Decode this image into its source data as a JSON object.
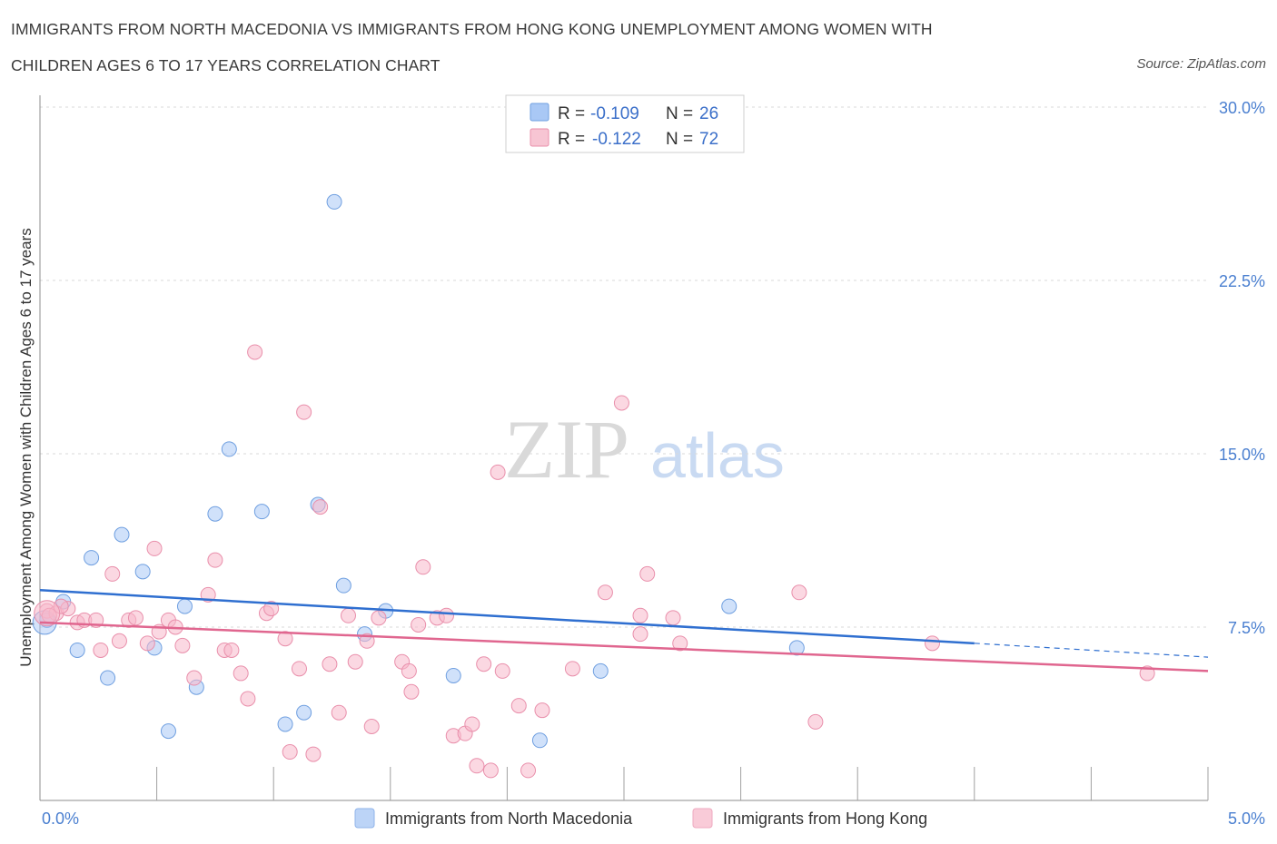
{
  "header": {
    "title_line1": "IMMIGRANTS FROM NORTH MACEDONIA VS IMMIGRANTS FROM HONG KONG UNEMPLOYMENT AMONG WOMEN WITH",
    "title_line2": "CHILDREN AGES 6 TO 17 YEARS CORRELATION CHART",
    "source": "Source: ZipAtlas.com"
  },
  "watermark": {
    "part1": "ZIP",
    "part2": "atlas"
  },
  "legend": {
    "rows": [
      {
        "r_label": "R =",
        "r_value": "-0.109",
        "n_label": "N =",
        "n_value": "26",
        "color": "#a9c8f5"
      },
      {
        "r_label": "R =",
        "r_value": "-0.122",
        "n_label": "N =",
        "n_value": "72",
        "color": "#f7b8cb"
      }
    ]
  },
  "bottom_legend": {
    "items": [
      {
        "label": "Immigrants from North Macedonia",
        "color": "#a9c8f5"
      },
      {
        "label": "Immigrants from Hong Kong",
        "color": "#f7b8cb"
      }
    ]
  },
  "chart_data": {
    "type": "scatter",
    "title": "IMMIGRANTS FROM NORTH MACEDONIA VS IMMIGRANTS FROM HONG KONG UNEMPLOYMENT AMONG WOMEN WITH CHILDREN AGES 6 TO 17 YEARS CORRELATION CHART",
    "xlabel": "",
    "ylabel": "Unemployment Among Women with Children Ages 6 to 17 years",
    "xlim": [
      0,
      5
    ],
    "ylim": [
      0,
      30
    ],
    "x_tick_labels": [
      "0.0%",
      "5.0%"
    ],
    "y_ticks": [
      7.5,
      15,
      22.5,
      30
    ],
    "y_tick_labels": [
      "7.5%",
      "15.0%",
      "22.5%",
      "30.0%"
    ],
    "grid": true,
    "legend_position": "top-center",
    "colors": {
      "blue_point": "#a9c8f5",
      "blue_edge": "#6f9fe0",
      "blue_line": "#2f6fd0",
      "pink_point": "#f7b8cb",
      "pink_edge": "#e98fab",
      "pink_line": "#e0668f"
    },
    "series": [
      {
        "name": "Immigrants from North Macedonia",
        "trend": {
          "x": [
            0,
            4
          ],
          "y": [
            9.1,
            6.8
          ],
          "dashed_to_x": 5,
          "dashed_y_end": 6.2
        },
        "points": [
          [
            0.03,
            7.8
          ],
          [
            0.1,
            8.6
          ],
          [
            0.16,
            6.5
          ],
          [
            0.22,
            10.5
          ],
          [
            0.29,
            5.3
          ],
          [
            0.35,
            11.5
          ],
          [
            0.44,
            9.9
          ],
          [
            0.49,
            6.6
          ],
          [
            0.55,
            3.0
          ],
          [
            0.62,
            8.4
          ],
          [
            0.67,
            4.9
          ],
          [
            0.75,
            12.4
          ],
          [
            0.81,
            15.2
          ],
          [
            0.95,
            12.5
          ],
          [
            1.05,
            3.3
          ],
          [
            1.13,
            3.8
          ],
          [
            1.19,
            12.8
          ],
          [
            1.26,
            25.9
          ],
          [
            1.3,
            9.3
          ],
          [
            1.39,
            7.2
          ],
          [
            1.48,
            8.2
          ],
          [
            1.77,
            5.4
          ],
          [
            2.14,
            2.6
          ],
          [
            2.4,
            5.6
          ],
          [
            2.95,
            8.4
          ],
          [
            3.24,
            6.6
          ]
        ]
      },
      {
        "name": "Immigrants from Hong Kong",
        "trend": {
          "x": [
            0,
            5
          ],
          "y": [
            7.7,
            5.6
          ]
        },
        "points": [
          [
            0.03,
            8.2
          ],
          [
            0.07,
            8.1
          ],
          [
            0.12,
            8.3
          ],
          [
            0.16,
            7.7
          ],
          [
            0.19,
            7.8
          ],
          [
            0.24,
            7.8
          ],
          [
            0.26,
            6.5
          ],
          [
            0.31,
            9.8
          ],
          [
            0.34,
            6.9
          ],
          [
            0.38,
            7.8
          ],
          [
            0.41,
            7.9
          ],
          [
            0.46,
            6.8
          ],
          [
            0.49,
            10.9
          ],
          [
            0.51,
            7.3
          ],
          [
            0.55,
            7.8
          ],
          [
            0.58,
            7.5
          ],
          [
            0.61,
            6.7
          ],
          [
            0.66,
            5.3
          ],
          [
            0.72,
            8.9
          ],
          [
            0.75,
            10.4
          ],
          [
            0.79,
            6.5
          ],
          [
            0.82,
            6.5
          ],
          [
            0.86,
            5.5
          ],
          [
            0.89,
            4.4
          ],
          [
            0.92,
            19.4
          ],
          [
            0.97,
            8.1
          ],
          [
            0.99,
            8.3
          ],
          [
            1.05,
            7.0
          ],
          [
            1.07,
            2.1
          ],
          [
            1.11,
            5.7
          ],
          [
            1.13,
            16.8
          ],
          [
            1.17,
            2.0
          ],
          [
            1.2,
            12.7
          ],
          [
            1.24,
            5.9
          ],
          [
            1.28,
            3.8
          ],
          [
            1.32,
            8.0
          ],
          [
            1.35,
            6.0
          ],
          [
            1.4,
            6.9
          ],
          [
            1.42,
            3.2
          ],
          [
            1.45,
            7.9
          ],
          [
            1.55,
            6.0
          ],
          [
            1.58,
            5.6
          ],
          [
            1.59,
            4.7
          ],
          [
            1.62,
            7.6
          ],
          [
            1.64,
            10.1
          ],
          [
            1.7,
            7.9
          ],
          [
            1.74,
            8.0
          ],
          [
            1.77,
            2.8
          ],
          [
            1.82,
            2.9
          ],
          [
            1.85,
            3.3
          ],
          [
            1.87,
            1.5
          ],
          [
            1.9,
            5.9
          ],
          [
            1.93,
            1.3
          ],
          [
            1.96,
            14.2
          ],
          [
            1.98,
            5.6
          ],
          [
            2.05,
            4.1
          ],
          [
            2.09,
            1.3
          ],
          [
            2.15,
            3.9
          ],
          [
            2.28,
            5.7
          ],
          [
            2.42,
            9.0
          ],
          [
            2.49,
            17.2
          ],
          [
            2.57,
            8.0
          ],
          [
            2.57,
            7.2
          ],
          [
            2.6,
            9.8
          ],
          [
            2.71,
            7.9
          ],
          [
            2.74,
            6.8
          ],
          [
            3.25,
            9.0
          ],
          [
            3.32,
            3.4
          ],
          [
            3.82,
            6.8
          ],
          [
            4.74,
            5.5
          ],
          [
            0.04,
            8.0
          ],
          [
            0.09,
            8.4
          ]
        ]
      }
    ]
  }
}
